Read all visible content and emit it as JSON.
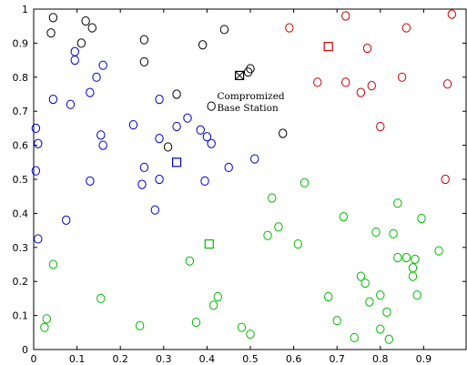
{
  "chart_data": {
    "type": "scatter",
    "title": "",
    "xlabel": "",
    "ylabel": "",
    "xlim": [
      0,
      1
    ],
    "ylim": [
      0,
      1
    ],
    "xticks": [
      "0",
      "0.1",
      "0.2",
      "0.3",
      "0.4",
      "0.5",
      "0.6",
      "0.7",
      "0.8",
      "0.9"
    ],
    "yticks": [
      "0",
      "0.1",
      "0.2",
      "0.3",
      "0.4",
      "0.5",
      "0.6",
      "0.7",
      "0.8",
      "0.9",
      "1"
    ],
    "grid": false,
    "annotation": {
      "lines": [
        "Compromized",
        "Base Station"
      ],
      "point": [
        0.48,
        0.805
      ]
    },
    "series": [
      {
        "color": "#000000",
        "marker": "circle",
        "points": [
          [
            0.045,
            0.975
          ],
          [
            0.135,
            0.945
          ],
          [
            0.04,
            0.93
          ],
          [
            0.255,
            0.91
          ],
          [
            0.39,
            0.895
          ],
          [
            0.44,
            0.94
          ],
          [
            0.12,
            0.965
          ],
          [
            0.11,
            0.9
          ],
          [
            0.255,
            0.845
          ],
          [
            0.5,
            0.825
          ],
          [
            0.495,
            0.815
          ],
          [
            0.33,
            0.75
          ],
          [
            0.41,
            0.715
          ],
          [
            0.575,
            0.635
          ],
          [
            0.31,
            0.595
          ]
        ]
      },
      {
        "color": "#0000cc",
        "marker": "circle",
        "points": [
          [
            0.095,
            0.875
          ],
          [
            0.095,
            0.85
          ],
          [
            0.16,
            0.835
          ],
          [
            0.145,
            0.8
          ],
          [
            0.045,
            0.735
          ],
          [
            0.085,
            0.72
          ],
          [
            0.13,
            0.755
          ],
          [
            0.155,
            0.63
          ],
          [
            0.16,
            0.6
          ],
          [
            0.005,
            0.65
          ],
          [
            0.01,
            0.605
          ],
          [
            0.005,
            0.525
          ],
          [
            0.01,
            0.325
          ],
          [
            0.075,
            0.38
          ],
          [
            0.13,
            0.495
          ],
          [
            0.23,
            0.66
          ],
          [
            0.255,
            0.535
          ],
          [
            0.25,
            0.485
          ],
          [
            0.29,
            0.62
          ],
          [
            0.29,
            0.735
          ],
          [
            0.33,
            0.655
          ],
          [
            0.355,
            0.68
          ],
          [
            0.385,
            0.645
          ],
          [
            0.4,
            0.625
          ],
          [
            0.41,
            0.605
          ],
          [
            0.45,
            0.535
          ],
          [
            0.395,
            0.495
          ],
          [
            0.28,
            0.41
          ],
          [
            0.51,
            0.56
          ],
          [
            0.29,
            0.5
          ]
        ]
      },
      {
        "color": "#cc0000",
        "marker": "circle",
        "points": [
          [
            0.72,
            0.98
          ],
          [
            0.86,
            0.945
          ],
          [
            0.965,
            0.985
          ],
          [
            0.59,
            0.945
          ],
          [
            0.77,
            0.885
          ],
          [
            0.78,
            0.775
          ],
          [
            0.755,
            0.755
          ],
          [
            0.655,
            0.785
          ],
          [
            0.72,
            0.785
          ],
          [
            0.85,
            0.8
          ],
          [
            0.955,
            0.78
          ],
          [
            0.8,
            0.655
          ],
          [
            0.95,
            0.5
          ]
        ]
      },
      {
        "color": "#00bb00",
        "marker": "circle",
        "points": [
          [
            0.045,
            0.25
          ],
          [
            0.155,
            0.15
          ],
          [
            0.03,
            0.09
          ],
          [
            0.025,
            0.065
          ],
          [
            0.245,
            0.07
          ],
          [
            0.36,
            0.26
          ],
          [
            0.375,
            0.08
          ],
          [
            0.415,
            0.13
          ],
          [
            0.425,
            0.155
          ],
          [
            0.48,
            0.065
          ],
          [
            0.5,
            0.045
          ],
          [
            0.55,
            0.445
          ],
          [
            0.54,
            0.335
          ],
          [
            0.565,
            0.36
          ],
          [
            0.625,
            0.49
          ],
          [
            0.61,
            0.31
          ],
          [
            0.68,
            0.155
          ],
          [
            0.7,
            0.085
          ],
          [
            0.715,
            0.39
          ],
          [
            0.74,
            0.035
          ],
          [
            0.755,
            0.215
          ],
          [
            0.765,
            0.195
          ],
          [
            0.775,
            0.14
          ],
          [
            0.79,
            0.345
          ],
          [
            0.8,
            0.16
          ],
          [
            0.8,
            0.06
          ],
          [
            0.815,
            0.11
          ],
          [
            0.83,
            0.34
          ],
          [
            0.84,
            0.43
          ],
          [
            0.84,
            0.27
          ],
          [
            0.86,
            0.27
          ],
          [
            0.875,
            0.24
          ],
          [
            0.88,
            0.265
          ],
          [
            0.875,
            0.215
          ],
          [
            0.885,
            0.16
          ],
          [
            0.895,
            0.385
          ],
          [
            0.935,
            0.29
          ],
          [
            0.82,
            0.03
          ]
        ]
      }
    ],
    "base_stations": [
      {
        "color": "#000000",
        "point": [
          0.475,
          0.805
        ],
        "marker": "square-x"
      },
      {
        "color": "#0000cc",
        "point": [
          0.33,
          0.55
        ],
        "marker": "square"
      },
      {
        "color": "#cc0000",
        "point": [
          0.68,
          0.89
        ],
        "marker": "square"
      },
      {
        "color": "#00bb00",
        "point": [
          0.405,
          0.31
        ],
        "marker": "square"
      }
    ]
  }
}
